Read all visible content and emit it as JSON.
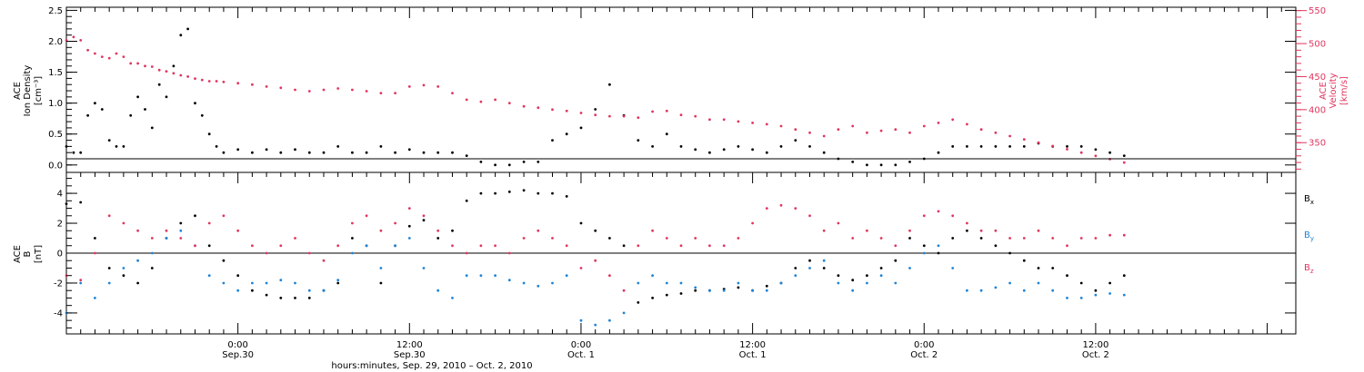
{
  "colors": {
    "axis": "#000000",
    "density": "#000000",
    "velocity": "#e0365f",
    "bx": "#000000",
    "by": "#1f84d6",
    "bz": "#e0365f"
  },
  "chart_data": [
    {
      "type": "scatter",
      "panel": "ion-density-velocity",
      "ylabel": [
        "ACE",
        "Ion Density",
        "[cm⁻³]"
      ],
      "ylabel_right": [
        "ACE",
        "Velocity",
        "[km/s]"
      ],
      "ylim": [
        -0.12,
        2.55
      ],
      "ylim_right": [
        305,
        555
      ],
      "yticks": [
        {
          "value": 0.0,
          "label": "0.0"
        },
        {
          "value": 0.5,
          "label": "0.5"
        },
        {
          "value": 1.0,
          "label": "1.0"
        },
        {
          "value": 1.5,
          "label": "1.5"
        },
        {
          "value": 2.0,
          "label": "2.0"
        },
        {
          "value": 2.5,
          "label": "2.5"
        }
      ],
      "yticks_right": [
        {
          "value": 350,
          "label": "350"
        },
        {
          "value": 400,
          "label": "400"
        },
        {
          "value": 450,
          "label": "450"
        },
        {
          "value": 500,
          "label": "500"
        },
        {
          "value": 550,
          "label": "550"
        }
      ],
      "reference_line": 0.1,
      "series": [
        {
          "key": "density",
          "axis": "left",
          "x_hours": [
            -12.0,
            -11.5,
            -11.0,
            -10.5,
            -10.0,
            -9.5,
            -9.0,
            -8.5,
            -8.0,
            -7.5,
            -7.0,
            -6.5,
            -6.0,
            -5.5,
            -5.0,
            -4.5,
            -4.0,
            -3.5,
            -3.0,
            -2.5,
            -2.0,
            -1.5,
            -1.0,
            0.0,
            1.0,
            2.0,
            3.0,
            4.0,
            5.0,
            6.0,
            7.0,
            8.0,
            9.0,
            10.0,
            11.0,
            12.0,
            13.0,
            14.0,
            15.0,
            16.0,
            17.0,
            18.0,
            19.0,
            20.0,
            21.0,
            22.0,
            23.0,
            24.0,
            25.0,
            26.0,
            27.0,
            28.0,
            29.0,
            30.0,
            31.0,
            32.0,
            33.0,
            34.0,
            35.0,
            36.0,
            37.0,
            38.0,
            39.0,
            40.0,
            41.0,
            42.0,
            43.0,
            44.0,
            45.0,
            46.0,
            47.0,
            48.0,
            49.0,
            50.0,
            51.0,
            52.0,
            53.0,
            54.0,
            55.0,
            56.0,
            57.0,
            58.0,
            59.0,
            60.0,
            61.0,
            62.0
          ],
          "y": [
            0.3,
            0.2,
            0.2,
            0.8,
            1.0,
            0.9,
            0.4,
            0.3,
            0.3,
            0.8,
            1.1,
            0.9,
            0.6,
            1.3,
            1.1,
            1.6,
            2.1,
            2.2,
            1.0,
            0.8,
            0.5,
            0.3,
            0.2,
            0.25,
            0.2,
            0.25,
            0.2,
            0.25,
            0.2,
            0.2,
            0.3,
            0.2,
            0.2,
            0.3,
            0.2,
            0.25,
            0.2,
            0.2,
            0.2,
            0.15,
            0.05,
            0.0,
            0.0,
            0.05,
            0.05,
            0.4,
            0.5,
            0.6,
            0.9,
            1.3,
            0.8,
            0.4,
            0.3,
            0.5,
            0.3,
            0.25,
            0.2,
            0.25,
            0.3,
            0.25,
            0.2,
            0.3,
            0.4,
            0.3,
            0.2,
            0.1,
            0.05,
            0.0,
            0.0,
            0.0,
            0.05,
            0.1,
            0.2,
            0.3,
            0.3,
            0.3,
            0.3,
            0.3,
            0.3,
            0.35,
            0.3,
            0.3,
            0.3,
            0.25,
            0.2,
            0.15
          ]
        },
        {
          "key": "velocity",
          "axis": "right",
          "x_hours": [
            -12.0,
            -11.5,
            -11.0,
            -10.5,
            -10.0,
            -9.5,
            -9.0,
            -8.5,
            -8.0,
            -7.5,
            -7.0,
            -6.5,
            -6.0,
            -5.5,
            -5.0,
            -4.5,
            -4.0,
            -3.5,
            -3.0,
            -2.5,
            -2.0,
            -1.5,
            -1.0,
            0.0,
            1.0,
            2.0,
            3.0,
            4.0,
            5.0,
            6.0,
            7.0,
            8.0,
            9.0,
            10.0,
            11.0,
            12.0,
            13.0,
            14.0,
            15.0,
            16.0,
            17.0,
            18.0,
            19.0,
            20.0,
            21.0,
            22.0,
            23.0,
            24.0,
            25.0,
            26.0,
            27.0,
            28.0,
            29.0,
            30.0,
            31.0,
            32.0,
            33.0,
            34.0,
            35.0,
            36.0,
            37.0,
            38.0,
            39.0,
            40.0,
            41.0,
            42.0,
            43.0,
            44.0,
            45.0,
            46.0,
            47.0,
            48.0,
            49.0,
            50.0,
            51.0,
            52.0,
            53.0,
            54.0,
            55.0,
            56.0,
            57.0,
            58.0,
            59.0,
            60.0,
            61.0,
            62.0
          ],
          "y": [
            505,
            510,
            505,
            490,
            485,
            480,
            478,
            485,
            480,
            470,
            470,
            466,
            465,
            460,
            458,
            455,
            452,
            450,
            447,
            445,
            443,
            443,
            442,
            440,
            438,
            435,
            433,
            430,
            428,
            430,
            432,
            430,
            428,
            425,
            425,
            435,
            437,
            435,
            425,
            415,
            412,
            415,
            410,
            405,
            403,
            400,
            398,
            395,
            392,
            390,
            390,
            388,
            397,
            398,
            392,
            390,
            385,
            385,
            382,
            380,
            378,
            375,
            370,
            365,
            360,
            370,
            375,
            365,
            368,
            370,
            365,
            375,
            380,
            385,
            378,
            370,
            365,
            360,
            355,
            350,
            345,
            340,
            335,
            330,
            325,
            320
          ]
        }
      ]
    },
    {
      "type": "scatter",
      "panel": "magnetic-field",
      "ylabel": [
        "ACE",
        "B",
        "[nT]"
      ],
      "ylim": [
        -5.4,
        5.4
      ],
      "yticks": [
        {
          "value": -4,
          "label": "-4"
        },
        {
          "value": -2,
          "label": "-2"
        },
        {
          "value": 0,
          "label": "0"
        },
        {
          "value": 2,
          "label": "2"
        },
        {
          "value": 4,
          "label": "4"
        }
      ],
      "reference_line": 0,
      "legend_position": "right",
      "series": [
        {
          "key": "bx",
          "name": "B",
          "subscript": "x",
          "x_hours": [
            -12.0,
            -11.0,
            -10.0,
            -9.0,
            -8.0,
            -7.0,
            -6.0,
            -5.0,
            -4.0,
            -3.0,
            -2.0,
            -1.0,
            0.0,
            1.0,
            2.0,
            3.0,
            4.0,
            5.0,
            6.0,
            7.0,
            8.0,
            9.0,
            10.0,
            11.0,
            12.0,
            13.0,
            14.0,
            15.0,
            16.0,
            17.0,
            18.0,
            19.0,
            20.0,
            21.0,
            22.0,
            23.0,
            24.0,
            25.0,
            26.0,
            27.0,
            28.0,
            29.0,
            30.0,
            31.0,
            32.0,
            33.0,
            34.0,
            35.0,
            36.0,
            37.0,
            38.0,
            39.0,
            40.0,
            41.0,
            42.0,
            43.0,
            44.0,
            45.0,
            46.0,
            47.0,
            48.0,
            49.0,
            50.0,
            51.0,
            52.0,
            53.0,
            54.0,
            55.0,
            56.0,
            57.0,
            58.0,
            59.0,
            60.0,
            61.0,
            62.0
          ],
          "y": [
            3.3,
            3.4,
            1.0,
            -1.0,
            -1.5,
            -2.0,
            -1.0,
            1.0,
            2.0,
            2.5,
            0.5,
            -0.5,
            -1.5,
            -2.5,
            -2.8,
            -3.0,
            -3.0,
            -3.0,
            -2.5,
            -2.0,
            1.0,
            0.5,
            -2.0,
            0.5,
            1.8,
            2.2,
            1.0,
            1.5,
            3.5,
            4.0,
            4.0,
            4.1,
            4.2,
            4.0,
            4.0,
            3.8,
            2.0,
            1.5,
            1.0,
            0.5,
            -3.3,
            -3.0,
            -2.8,
            -2.7,
            -2.5,
            -2.5,
            -2.4,
            -2.3,
            -2.5,
            -2.2,
            -2.0,
            -1.0,
            -0.5,
            -1.0,
            -1.5,
            -1.8,
            -1.5,
            -1.0,
            -0.5,
            1.0,
            0.5,
            0.0,
            1.0,
            1.5,
            1.0,
            0.5,
            0.0,
            -0.5,
            -1.0,
            -1.0,
            -1.5,
            -2.0,
            -2.5,
            -2.0,
            -1.5
          ]
        },
        {
          "key": "by",
          "name": "B",
          "subscript": "y",
          "x_hours": [
            -12.0,
            -11.0,
            -10.0,
            -9.0,
            -8.0,
            -7.0,
            -6.0,
            -5.0,
            -4.0,
            -3.0,
            -2.0,
            -1.0,
            0.0,
            1.0,
            2.0,
            3.0,
            4.0,
            5.0,
            6.0,
            7.0,
            8.0,
            9.0,
            10.0,
            11.0,
            12.0,
            13.0,
            14.0,
            15.0,
            16.0,
            17.0,
            18.0,
            19.0,
            20.0,
            21.0,
            22.0,
            23.0,
            24.0,
            25.0,
            26.0,
            27.0,
            28.0,
            29.0,
            30.0,
            31.0,
            32.0,
            33.0,
            34.0,
            35.0,
            36.0,
            37.0,
            38.0,
            39.0,
            40.0,
            41.0,
            42.0,
            43.0,
            44.0,
            45.0,
            46.0,
            47.0,
            48.0,
            49.0,
            50.0,
            51.0,
            52.0,
            53.0,
            54.0,
            55.0,
            56.0,
            57.0,
            58.0,
            59.0,
            60.0,
            61.0,
            62.0
          ],
          "y": [
            -4.0,
            -2.0,
            -3.0,
            -2.0,
            -1.0,
            -0.5,
            0.0,
            1.0,
            1.5,
            0.5,
            -1.5,
            -2.0,
            -2.5,
            -2.0,
            -2.0,
            -1.8,
            -2.0,
            -2.5,
            -2.5,
            -1.8,
            0.0,
            0.5,
            -1.0,
            0.5,
            1.0,
            -1.0,
            -2.5,
            -3.0,
            -1.5,
            -1.5,
            -1.5,
            -1.8,
            -2.0,
            -2.2,
            -2.0,
            -1.5,
            -4.5,
            -4.8,
            -4.5,
            -4.0,
            -2.0,
            -1.5,
            -2.0,
            -2.0,
            -2.3,
            -2.5,
            -2.5,
            -2.0,
            -2.5,
            -2.5,
            -2.0,
            -1.5,
            -1.0,
            -0.5,
            -2.0,
            -2.5,
            -2.0,
            -1.5,
            -2.0,
            -1.0,
            0.0,
            0.5,
            -1.0,
            -2.5,
            -2.5,
            -2.3,
            -2.0,
            -2.5,
            -2.0,
            -2.5,
            -3.0,
            -3.0,
            -2.8,
            -2.7,
            -2.8
          ]
        },
        {
          "key": "bz",
          "name": "B",
          "subscript": "z",
          "x_hours": [
            -12.0,
            -11.0,
            -10.0,
            -9.0,
            -8.0,
            -7.0,
            -6.0,
            -5.0,
            -4.0,
            -3.0,
            -2.0,
            -1.0,
            0.0,
            1.0,
            2.0,
            3.0,
            4.0,
            5.0,
            6.0,
            7.0,
            8.0,
            9.0,
            10.0,
            11.0,
            12.0,
            13.0,
            14.0,
            15.0,
            16.0,
            17.0,
            18.0,
            19.0,
            20.0,
            21.0,
            22.0,
            23.0,
            24.0,
            25.0,
            26.0,
            27.0,
            28.0,
            29.0,
            30.0,
            31.0,
            32.0,
            33.0,
            34.0,
            35.0,
            36.0,
            37.0,
            38.0,
            39.0,
            40.0,
            41.0,
            42.0,
            43.0,
            44.0,
            45.0,
            46.0,
            47.0,
            48.0,
            49.0,
            50.0,
            51.0,
            52.0,
            53.0,
            54.0,
            55.0,
            56.0,
            57.0,
            58.0,
            59.0,
            60.0,
            61.0,
            62.0
          ],
          "y": [
            -1.5,
            -1.8,
            0.0,
            2.5,
            2.0,
            1.5,
            1.0,
            1.5,
            1.0,
            0.5,
            2.0,
            2.5,
            1.5,
            0.5,
            0.0,
            0.5,
            1.0,
            0.0,
            -0.5,
            0.5,
            2.0,
            2.5,
            1.5,
            2.0,
            3.0,
            2.5,
            1.5,
            0.5,
            0.0,
            0.5,
            0.5,
            0.0,
            1.0,
            1.5,
            1.0,
            0.5,
            -1.0,
            -0.5,
            -1.5,
            -2.5,
            0.5,
            1.5,
            1.0,
            0.5,
            1.0,
            0.5,
            0.5,
            1.0,
            2.0,
            3.0,
            3.2,
            3.0,
            2.5,
            1.5,
            2.0,
            1.0,
            1.5,
            1.0,
            0.5,
            1.5,
            2.5,
            2.8,
            2.5,
            2.0,
            1.5,
            1.5,
            1.0,
            1.0,
            1.5,
            1.0,
            0.5,
            1.0,
            1.0,
            1.2,
            1.2
          ]
        }
      ]
    }
  ],
  "time_axis": {
    "tick_labels": [
      {
        "hour": 0,
        "time": "0:00",
        "date": "Sep.30"
      },
      {
        "hour": 12,
        "time": "12:00",
        "date": "Sep.30"
      },
      {
        "hour": 24,
        "time": "0:00",
        "date": "Oct. 1"
      },
      {
        "hour": 36,
        "time": "12:00",
        "date": "Oct. 1"
      },
      {
        "hour": 48,
        "time": "0:00",
        "date": "Oct. 2"
      },
      {
        "hour": 60,
        "time": "12:00",
        "date": "Oct. 2"
      }
    ],
    "xlabel": "hours:minutes, Sep. 29, 2010 – Oct.  2, 2010"
  }
}
